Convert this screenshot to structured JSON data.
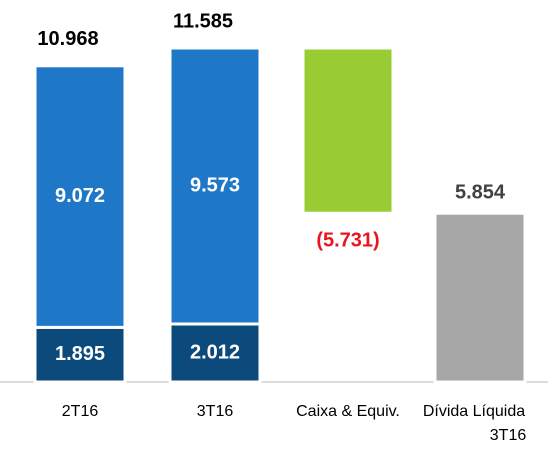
{
  "chart_data": {
    "type": "stacked_waterfall",
    "categories": [
      "2T16",
      "3T16",
      "Caixa & Equiv.",
      "Dívida Líquida 3T16"
    ],
    "series": [
      {
        "color": "#0d4a7c",
        "values": [
          1895,
          2012,
          null,
          null
        ],
        "value_labels": [
          "1.895",
          "2.012",
          null,
          null
        ],
        "label_position": "inside",
        "label_color": "#ffffff"
      },
      {
        "color": "#1f77c8",
        "values": [
          9072,
          9573,
          null,
          null
        ],
        "value_labels": [
          "9.072",
          "9.573",
          null,
          null
        ],
        "label_position": "inside",
        "label_color": "#ffffff"
      },
      {
        "color": "#99cc33",
        "values": [
          null,
          null,
          -5731,
          null
        ],
        "value_labels": [
          null,
          null,
          "(5.731)",
          null
        ],
        "label_position": "outside",
        "label_color": "#e8141e",
        "float": true
      },
      {
        "color": "#a6a6a6",
        "values": [
          null,
          null,
          null,
          5854
        ],
        "value_labels": [
          null,
          null,
          null,
          "5.854"
        ],
        "label_position": "outside",
        "label_color": "#404040"
      }
    ],
    "totals": [
      10968,
      11585,
      null,
      null
    ],
    "total_labels": [
      "10.968",
      "11.585",
      null,
      null
    ]
  }
}
